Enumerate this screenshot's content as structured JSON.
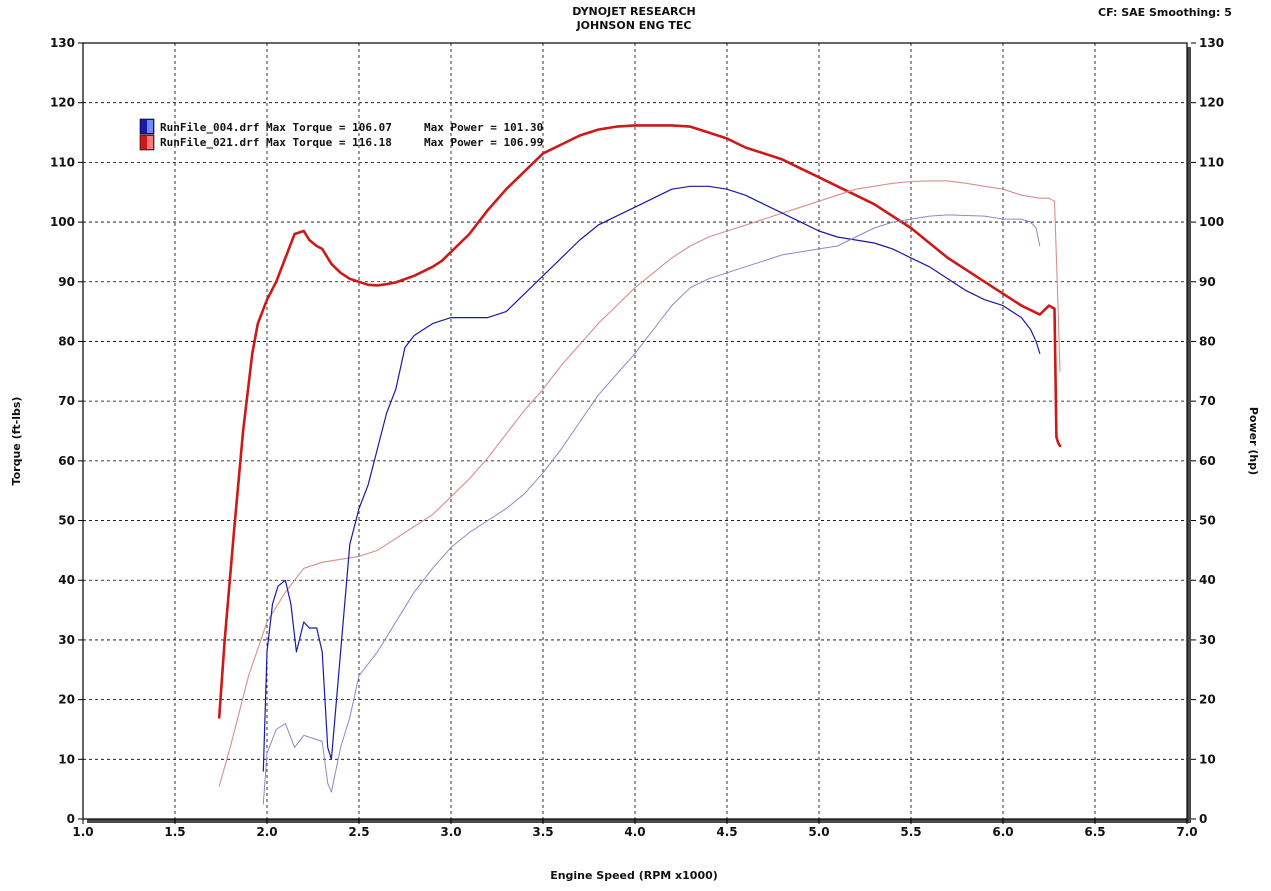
{
  "header": {
    "title_line1": "DYNOJET RESEARCH",
    "title_line2": "JOHNSON ENG TEC",
    "settings": "CF: SAE  Smoothing: 5"
  },
  "chart_data": {
    "type": "line",
    "xlabel": "Engine Speed (RPM x1000)",
    "ylabel": "Torque (ft-lbs)",
    "y2label": "Power (hp)",
    "xlim": [
      1.0,
      7.0
    ],
    "ylim": [
      0,
      130
    ],
    "y2lim": [
      0,
      130
    ],
    "x_ticks": [
      "1.0",
      "1.5",
      "2.0",
      "2.5",
      "3.0",
      "3.5",
      "4.0",
      "4.5",
      "5.0",
      "5.5",
      "6.0",
      "6.5",
      "7.0"
    ],
    "y_ticks": [
      "0",
      "10",
      "20",
      "30",
      "40",
      "50",
      "60",
      "70",
      "80",
      "90",
      "100",
      "110",
      "120",
      "130"
    ],
    "grid": true,
    "legend": [
      {
        "file": "RunFile_004.drf",
        "torque_text": "Max Torque = 106.07",
        "power_text": "Max Power = 101.30",
        "color": "#1a1aa6"
      },
      {
        "file": "RunFile_021.drf",
        "torque_text": "Max Torque = 116.18",
        "power_text": "Max Power = 106.99",
        "color": "#cc1a1a"
      }
    ],
    "series": [
      {
        "run": "RunFile_021.drf",
        "measure": "torque",
        "color": "#cc1a1a",
        "width": 2.6,
        "x": [
          1.74,
          1.77,
          1.82,
          1.87,
          1.92,
          1.95,
          2.0,
          2.05,
          2.1,
          2.15,
          2.2,
          2.23,
          2.27,
          2.3,
          2.35,
          2.4,
          2.45,
          2.5,
          2.55,
          2.6,
          2.65,
          2.7,
          2.8,
          2.9,
          2.95,
          3.0,
          3.1,
          3.2,
          3.3,
          3.4,
          3.5,
          3.6,
          3.7,
          3.8,
          3.9,
          4.0,
          4.1,
          4.2,
          4.3,
          4.4,
          4.5,
          4.6,
          4.7,
          4.8,
          4.9,
          5.0,
          5.1,
          5.2,
          5.3,
          5.4,
          5.5,
          5.6,
          5.7,
          5.8,
          5.9,
          6.0,
          6.1,
          6.2,
          6.25,
          6.28,
          6.29,
          6.3,
          6.31
        ],
        "y": [
          17,
          30,
          48,
          65,
          78,
          83,
          87,
          90,
          94,
          98,
          98.5,
          97,
          96,
          95.5,
          93,
          91.5,
          90.5,
          90,
          89.5,
          89.4,
          89.6,
          89.9,
          91,
          92.5,
          93.5,
          95,
          98,
          102,
          105.5,
          108.5,
          111.5,
          113,
          114.5,
          115.5,
          116,
          116.2,
          116.2,
          116.2,
          116,
          115,
          114,
          112.5,
          111.5,
          110.5,
          109,
          107.5,
          106,
          104.5,
          103,
          101,
          99,
          96.5,
          94,
          92,
          90,
          88,
          86,
          84.5,
          86,
          85.5,
          64,
          63,
          62.5
        ]
      },
      {
        "run": "RunFile_021.drf",
        "measure": "power",
        "color": "#d98e8e",
        "width": 1.1,
        "x": [
          1.74,
          1.8,
          1.9,
          2.0,
          2.1,
          2.2,
          2.3,
          2.4,
          2.5,
          2.6,
          2.7,
          2.8,
          2.9,
          3.0,
          3.1,
          3.2,
          3.3,
          3.4,
          3.5,
          3.6,
          3.7,
          3.8,
          3.9,
          4.0,
          4.1,
          4.2,
          4.3,
          4.4,
          4.5,
          4.6,
          4.7,
          4.8,
          4.9,
          5.0,
          5.1,
          5.2,
          5.3,
          5.4,
          5.5,
          5.6,
          5.7,
          5.8,
          5.9,
          6.0,
          6.1,
          6.2,
          6.25,
          6.28,
          6.3,
          6.31
        ],
        "y": [
          5.5,
          12,
          24,
          33,
          38,
          42,
          43,
          43.5,
          44,
          45,
          47,
          49,
          51,
          54,
          57,
          60.5,
          64.5,
          68.5,
          72,
          76,
          79.5,
          83,
          86,
          89,
          91.5,
          94,
          96,
          97.5,
          98.5,
          99.5,
          100.5,
          101.5,
          102.5,
          103.5,
          104.5,
          105.5,
          106,
          106.5,
          106.8,
          106.9,
          106.9,
          106.5,
          106,
          105.5,
          104.5,
          104,
          104,
          103.5,
          85,
          75
        ]
      },
      {
        "run": "RunFile_004.drf",
        "measure": "torque",
        "color": "#1a1aa6",
        "width": 1.2,
        "x": [
          1.98,
          2.0,
          2.03,
          2.06,
          2.1,
          2.13,
          2.16,
          2.2,
          2.23,
          2.27,
          2.3,
          2.33,
          2.35,
          2.4,
          2.45,
          2.5,
          2.55,
          2.6,
          2.65,
          2.7,
          2.75,
          2.8,
          2.85,
          2.9,
          3.0,
          3.1,
          3.2,
          3.3,
          3.4,
          3.5,
          3.6,
          3.7,
          3.8,
          3.9,
          4.0,
          4.1,
          4.2,
          4.3,
          4.4,
          4.5,
          4.6,
          4.7,
          4.8,
          4.9,
          5.0,
          5.1,
          5.2,
          5.3,
          5.4,
          5.5,
          5.6,
          5.7,
          5.8,
          5.9,
          6.0,
          6.1,
          6.15,
          6.18,
          6.2
        ],
        "y": [
          8,
          28,
          36,
          39,
          40,
          36,
          28,
          33,
          32,
          32,
          28,
          12,
          10,
          28,
          46,
          52,
          56,
          62,
          68,
          72,
          79,
          81,
          82,
          83,
          84,
          84,
          84,
          85,
          88,
          91,
          94,
          97,
          99.5,
          101,
          102.5,
          104,
          105.5,
          106,
          106,
          105.5,
          104.5,
          103,
          101.5,
          100,
          98.5,
          97.5,
          97,
          96.5,
          95.5,
          94,
          92.5,
          90.5,
          88.5,
          87,
          86,
          84,
          82,
          80,
          78
        ]
      },
      {
        "run": "RunFile_004.drf",
        "measure": "power",
        "color": "#8a8ac8",
        "width": 1.0,
        "x": [
          1.98,
          2.0,
          2.05,
          2.1,
          2.15,
          2.2,
          2.25,
          2.3,
          2.33,
          2.35,
          2.4,
          2.45,
          2.5,
          2.6,
          2.7,
          2.8,
          2.9,
          3.0,
          3.1,
          3.2,
          3.3,
          3.4,
          3.5,
          3.6,
          3.7,
          3.8,
          3.9,
          4.0,
          4.1,
          4.2,
          4.3,
          4.4,
          4.5,
          4.6,
          4.7,
          4.8,
          4.9,
          5.0,
          5.1,
          5.2,
          5.3,
          5.4,
          5.5,
          5.6,
          5.7,
          5.8,
          5.9,
          6.0,
          6.1,
          6.15,
          6.18,
          6.2
        ],
        "y": [
          2.5,
          11,
          15,
          16,
          12,
          14,
          13.5,
          13,
          6,
          4.5,
          12,
          17,
          24,
          28,
          33,
          38,
          42,
          45.5,
          48,
          50,
          52,
          54.5,
          58,
          62,
          66.5,
          71,
          74.5,
          78,
          82,
          86,
          89,
          90.5,
          91.5,
          92.5,
          93.5,
          94.5,
          95,
          95.5,
          96,
          97.5,
          99,
          100,
          100.5,
          101,
          101.2,
          101.1,
          101,
          100.5,
          100.5,
          100,
          99,
          96
        ]
      }
    ]
  }
}
